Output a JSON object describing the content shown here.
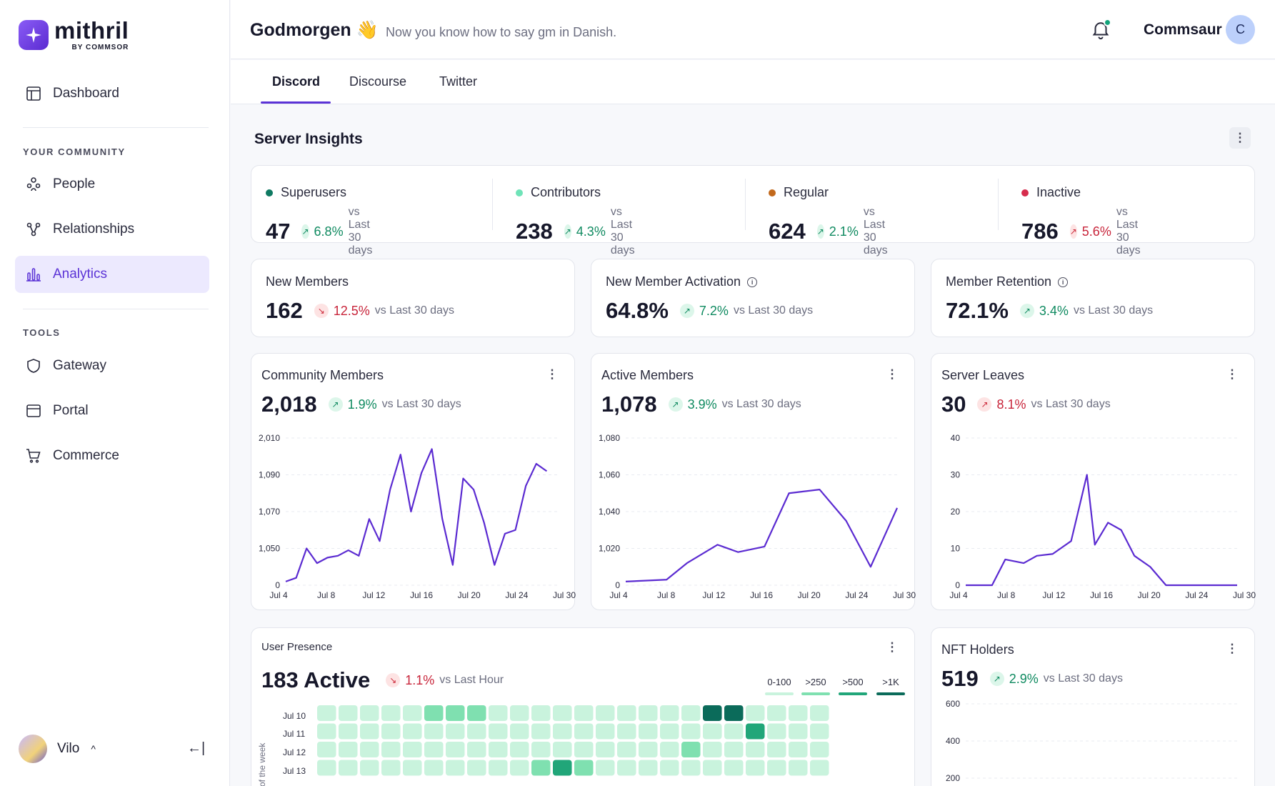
{
  "logo": {
    "name": "mithril",
    "sub": "BY COMMSOR"
  },
  "sidebar": {
    "dashboard": "Dashboard",
    "community_label": "YOUR COMMUNITY",
    "people": "People",
    "relationships": "Relationships",
    "analytics": "Analytics",
    "tools_label": "TOOLS",
    "gateway": "Gateway",
    "portal": "Portal",
    "commerce": "Commerce",
    "user_name": "Vilo",
    "user_caret": "^",
    "collapse_icon": "←|"
  },
  "header": {
    "greeting": "Godmorgen 👋",
    "greeting_sub": "Now you know how to say gm in Danish.",
    "account_name": "Commsaur",
    "account_initial": "C"
  },
  "tabs": [
    "Discord",
    "Discourse",
    "Twitter"
  ],
  "insights": {
    "title": "Server Insights",
    "segments": [
      {
        "label": "Superusers",
        "color": "#0f7a62",
        "value": "47",
        "change": "6.8%",
        "direction": "up",
        "compare": "vs Last 30 days"
      },
      {
        "label": "Contributors",
        "color": "#6fe3b8",
        "value": "238",
        "change": "4.3%",
        "direction": "up",
        "compare": "vs Last 30 days"
      },
      {
        "label": "Regular",
        "color": "#c2691c",
        "value": "624",
        "change": "2.1%",
        "direction": "up",
        "compare": "vs Last 30 days"
      },
      {
        "label": "Inactive",
        "color": "#d62c4d",
        "value": "786",
        "change": "5.6%",
        "direction": "down",
        "compare": "vs Last 30 days"
      }
    ]
  },
  "metrics": [
    {
      "title": "New Members",
      "value": "162",
      "change": "12.5%",
      "direction": "down",
      "compare": "vs Last 30 days",
      "info": false
    },
    {
      "title": "New Member Activation",
      "value": "64.8%",
      "change": "7.2%",
      "direction": "up",
      "compare": "vs Last 30 days",
      "info": true
    },
    {
      "title": "Member Retention",
      "value": "72.1%",
      "change": "3.4%",
      "direction": "up",
      "compare": "vs Last 30 days",
      "info": true
    }
  ],
  "charts": [
    {
      "title": "Community Members",
      "value": "2,018",
      "change": "1.9%",
      "direction": "up",
      "compare": "vs Last 30 days"
    },
    {
      "title": "Active Members",
      "value": "1,078",
      "change": "3.9%",
      "direction": "up",
      "compare": "vs Last 30 days"
    },
    {
      "title": "Server Leaves",
      "value": "30",
      "change": "8.1%",
      "direction": "down",
      "compare": "vs Last 30 days"
    }
  ],
  "presence": {
    "title": "User Presence",
    "value": "183 Active",
    "change": "1.1%",
    "direction": "down",
    "compare": "vs Last Hour",
    "legend": [
      {
        "label": "0-100",
        "color": "#c9f3dd"
      },
      {
        "label": ">250",
        "color": "#7fe0b0"
      },
      {
        "label": ">500",
        "color": "#21a679"
      },
      {
        "label": ">1K",
        "color": "#0b6b5a"
      }
    ],
    "rows": [
      "Jul 10",
      "Jul 11",
      "Jul 12",
      "Jul 13"
    ],
    "axis_label": "of the week"
  },
  "nft": {
    "title": "NFT Holders",
    "value": "519",
    "change": "2.9%",
    "direction": "up",
    "compare": "vs Last 30 days"
  },
  "chart_data": [
    {
      "type": "line",
      "title": "Community Members",
      "color": "#5b2bd1",
      "x_ticks": [
        "Jul 4",
        "Jul 8",
        "Jul 12",
        "Jul 16",
        "Jul 20",
        "Jul 24",
        "Jul 30"
      ],
      "y_ticks": [
        "0",
        "1,050",
        "1,070",
        "1,090",
        "2,010"
      ],
      "y_tick_values": [
        0,
        1,
        2,
        3,
        4
      ],
      "ylim": [
        0,
        4
      ],
      "x": [
        0,
        1,
        2,
        3,
        4,
        5,
        6,
        7,
        8,
        9,
        10,
        11,
        12,
        13,
        14,
        15,
        16,
        17,
        18,
        19,
        20,
        21,
        22,
        23,
        24,
        25,
        26
      ],
      "y": [
        0.1,
        0.2,
        1.0,
        0.6,
        0.75,
        0.8,
        0.95,
        0.8,
        1.8,
        1.2,
        2.6,
        3.55,
        2.0,
        3.05,
        3.7,
        1.8,
        0.55,
        2.9,
        2.6,
        1.7,
        0.55,
        1.4,
        1.5,
        2.7,
        3.3,
        3.1,
        null
      ],
      "grid": true
    },
    {
      "type": "line",
      "title": "Active Members",
      "color": "#5b2bd1",
      "x_ticks": [
        "Jul 4",
        "Jul 8",
        "Jul 12",
        "Jul 16",
        "Jul 20",
        "Jul 24",
        "Jul 30"
      ],
      "y_ticks": [
        "0",
        "1,020",
        "1,040",
        "1,060",
        "1,080"
      ],
      "y_tick_values": [
        0,
        1,
        2,
        3,
        4
      ],
      "ylim": [
        0,
        4
      ],
      "x": [
        0,
        2,
        3,
        4.5,
        5.5,
        6.8,
        8,
        9.5,
        10.8,
        12,
        13.3
      ],
      "y": [
        0.1,
        0.15,
        0.6,
        1.1,
        0.9,
        1.05,
        2.5,
        2.6,
        1.75,
        0.5,
        2.1
      ],
      "grid": true
    },
    {
      "type": "line",
      "title": "Server Leaves",
      "color": "#5b2bd1",
      "x_ticks": [
        "Jul 4",
        "Jul 8",
        "Jul 12",
        "Jul 16",
        "Jul 20",
        "Jul 24",
        "Jul 30"
      ],
      "y_ticks": [
        "0",
        "10",
        "20",
        "30",
        "40"
      ],
      "y_tick_values": [
        0,
        10,
        20,
        30,
        40
      ],
      "ylim": [
        0,
        40
      ],
      "x": [
        0,
        1,
        1.5,
        2.2,
        2.7,
        3.3,
        4.0,
        4.6,
        4.9,
        5.4,
        5.9,
        6.4,
        7.0,
        7.6,
        8.1,
        9.0,
        10.3
      ],
      "y": [
        0,
        0,
        7,
        6,
        8,
        8.5,
        12,
        30,
        11,
        17,
        15,
        8,
        5,
        0,
        0,
        0,
        0
      ],
      "grid": true
    },
    {
      "type": "heatmap",
      "title": "User Presence",
      "rows": [
        "Jul 10",
        "Jul 11",
        "Jul 12",
        "Jul 13"
      ],
      "levels": [
        [
          0,
          0,
          0,
          0,
          0,
          1,
          1,
          1,
          0,
          0,
          0,
          0,
          0,
          0,
          0,
          0,
          0,
          0,
          3,
          3,
          0,
          0,
          0,
          0
        ],
        [
          0,
          0,
          0,
          0,
          0,
          0,
          0,
          0,
          0,
          0,
          0,
          0,
          0,
          0,
          0,
          0,
          0,
          0,
          0,
          0,
          2,
          0,
          0,
          0
        ],
        [
          0,
          0,
          0,
          0,
          0,
          0,
          0,
          0,
          0,
          0,
          0,
          0,
          0,
          0,
          0,
          0,
          0,
          1,
          0,
          0,
          0,
          0,
          0,
          0
        ],
        [
          0,
          0,
          0,
          0,
          0,
          0,
          0,
          0,
          0,
          0,
          1,
          2,
          1,
          0,
          0,
          0,
          0,
          0,
          0,
          0,
          0,
          0,
          0,
          0
        ]
      ],
      "level_legend": [
        "0-100",
        ">250",
        ">500",
        ">1K"
      ]
    },
    {
      "type": "line",
      "title": "NFT Holders",
      "y_ticks": [
        "600",
        "400",
        "200"
      ],
      "grid": true
    }
  ]
}
